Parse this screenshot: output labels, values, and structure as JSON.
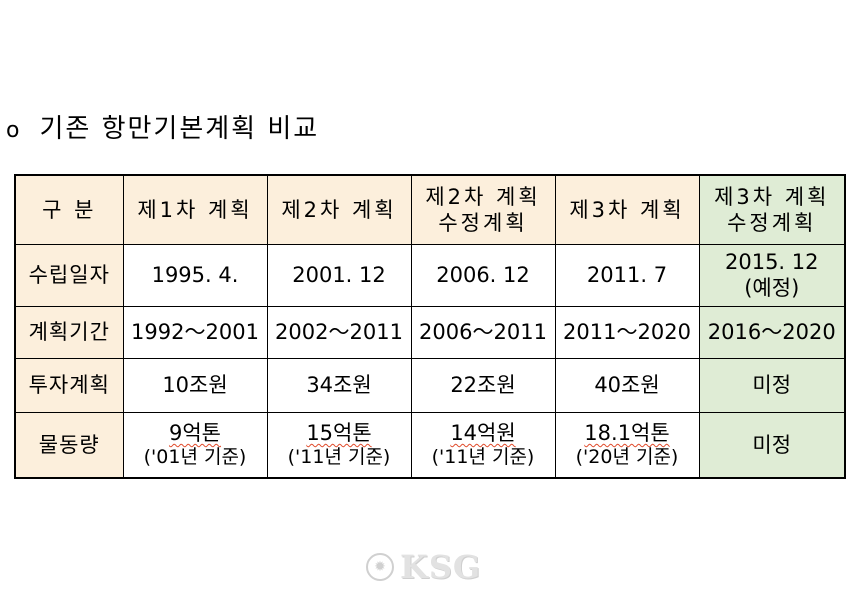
{
  "heading": {
    "bullet": "o",
    "title": "기존 항만기본계획 비교"
  },
  "table": {
    "header": {
      "category": "구  분",
      "plan1": "제1차 계획",
      "plan2": "제2차 계획",
      "plan2_rev_l1": "제2차 계획",
      "plan2_rev_l2": "수정계획",
      "plan3": "제3차 계획",
      "plan3_rev_l1": "제3차 계획",
      "plan3_rev_l2": "수정계획"
    },
    "rows": {
      "established": {
        "label": "수립일자",
        "plan1": "1995. 4.",
        "plan2": "2001. 12",
        "plan2_rev": "2006. 12",
        "plan3": "2011. 7",
        "plan3_rev_l1": "2015. 12",
        "plan3_rev_l2": "(예정)"
      },
      "period": {
        "label": "계획기간",
        "plan1": "1992～2001",
        "plan2": "2002～2011",
        "plan2_rev": "2006～2011",
        "plan3": "2011～2020",
        "plan3_rev": "2016～2020"
      },
      "investment": {
        "label": "투자계획",
        "plan1": "10조원",
        "plan2": "34조원",
        "plan2_rev": "22조원",
        "plan3": "40조원",
        "plan3_rev": "미정"
      },
      "volume": {
        "label": "물동량",
        "plan1_l1": "9억톤",
        "plan1_l2": "('01년 기준)",
        "plan2_l1": "15억톤",
        "plan2_l2": "('11년 기준)",
        "plan2_rev_l1": "14억원",
        "plan2_rev_l2": "('11년 기준)",
        "plan3_l1": "18.1억톤",
        "plan3_l2": "('20년 기준)",
        "plan3_rev": "미정"
      }
    }
  },
  "watermark": {
    "text": "KSG"
  },
  "colors": {
    "header_bg": "#fcefdc",
    "highlight_bg": "#dfecd5",
    "border": "#000000"
  }
}
